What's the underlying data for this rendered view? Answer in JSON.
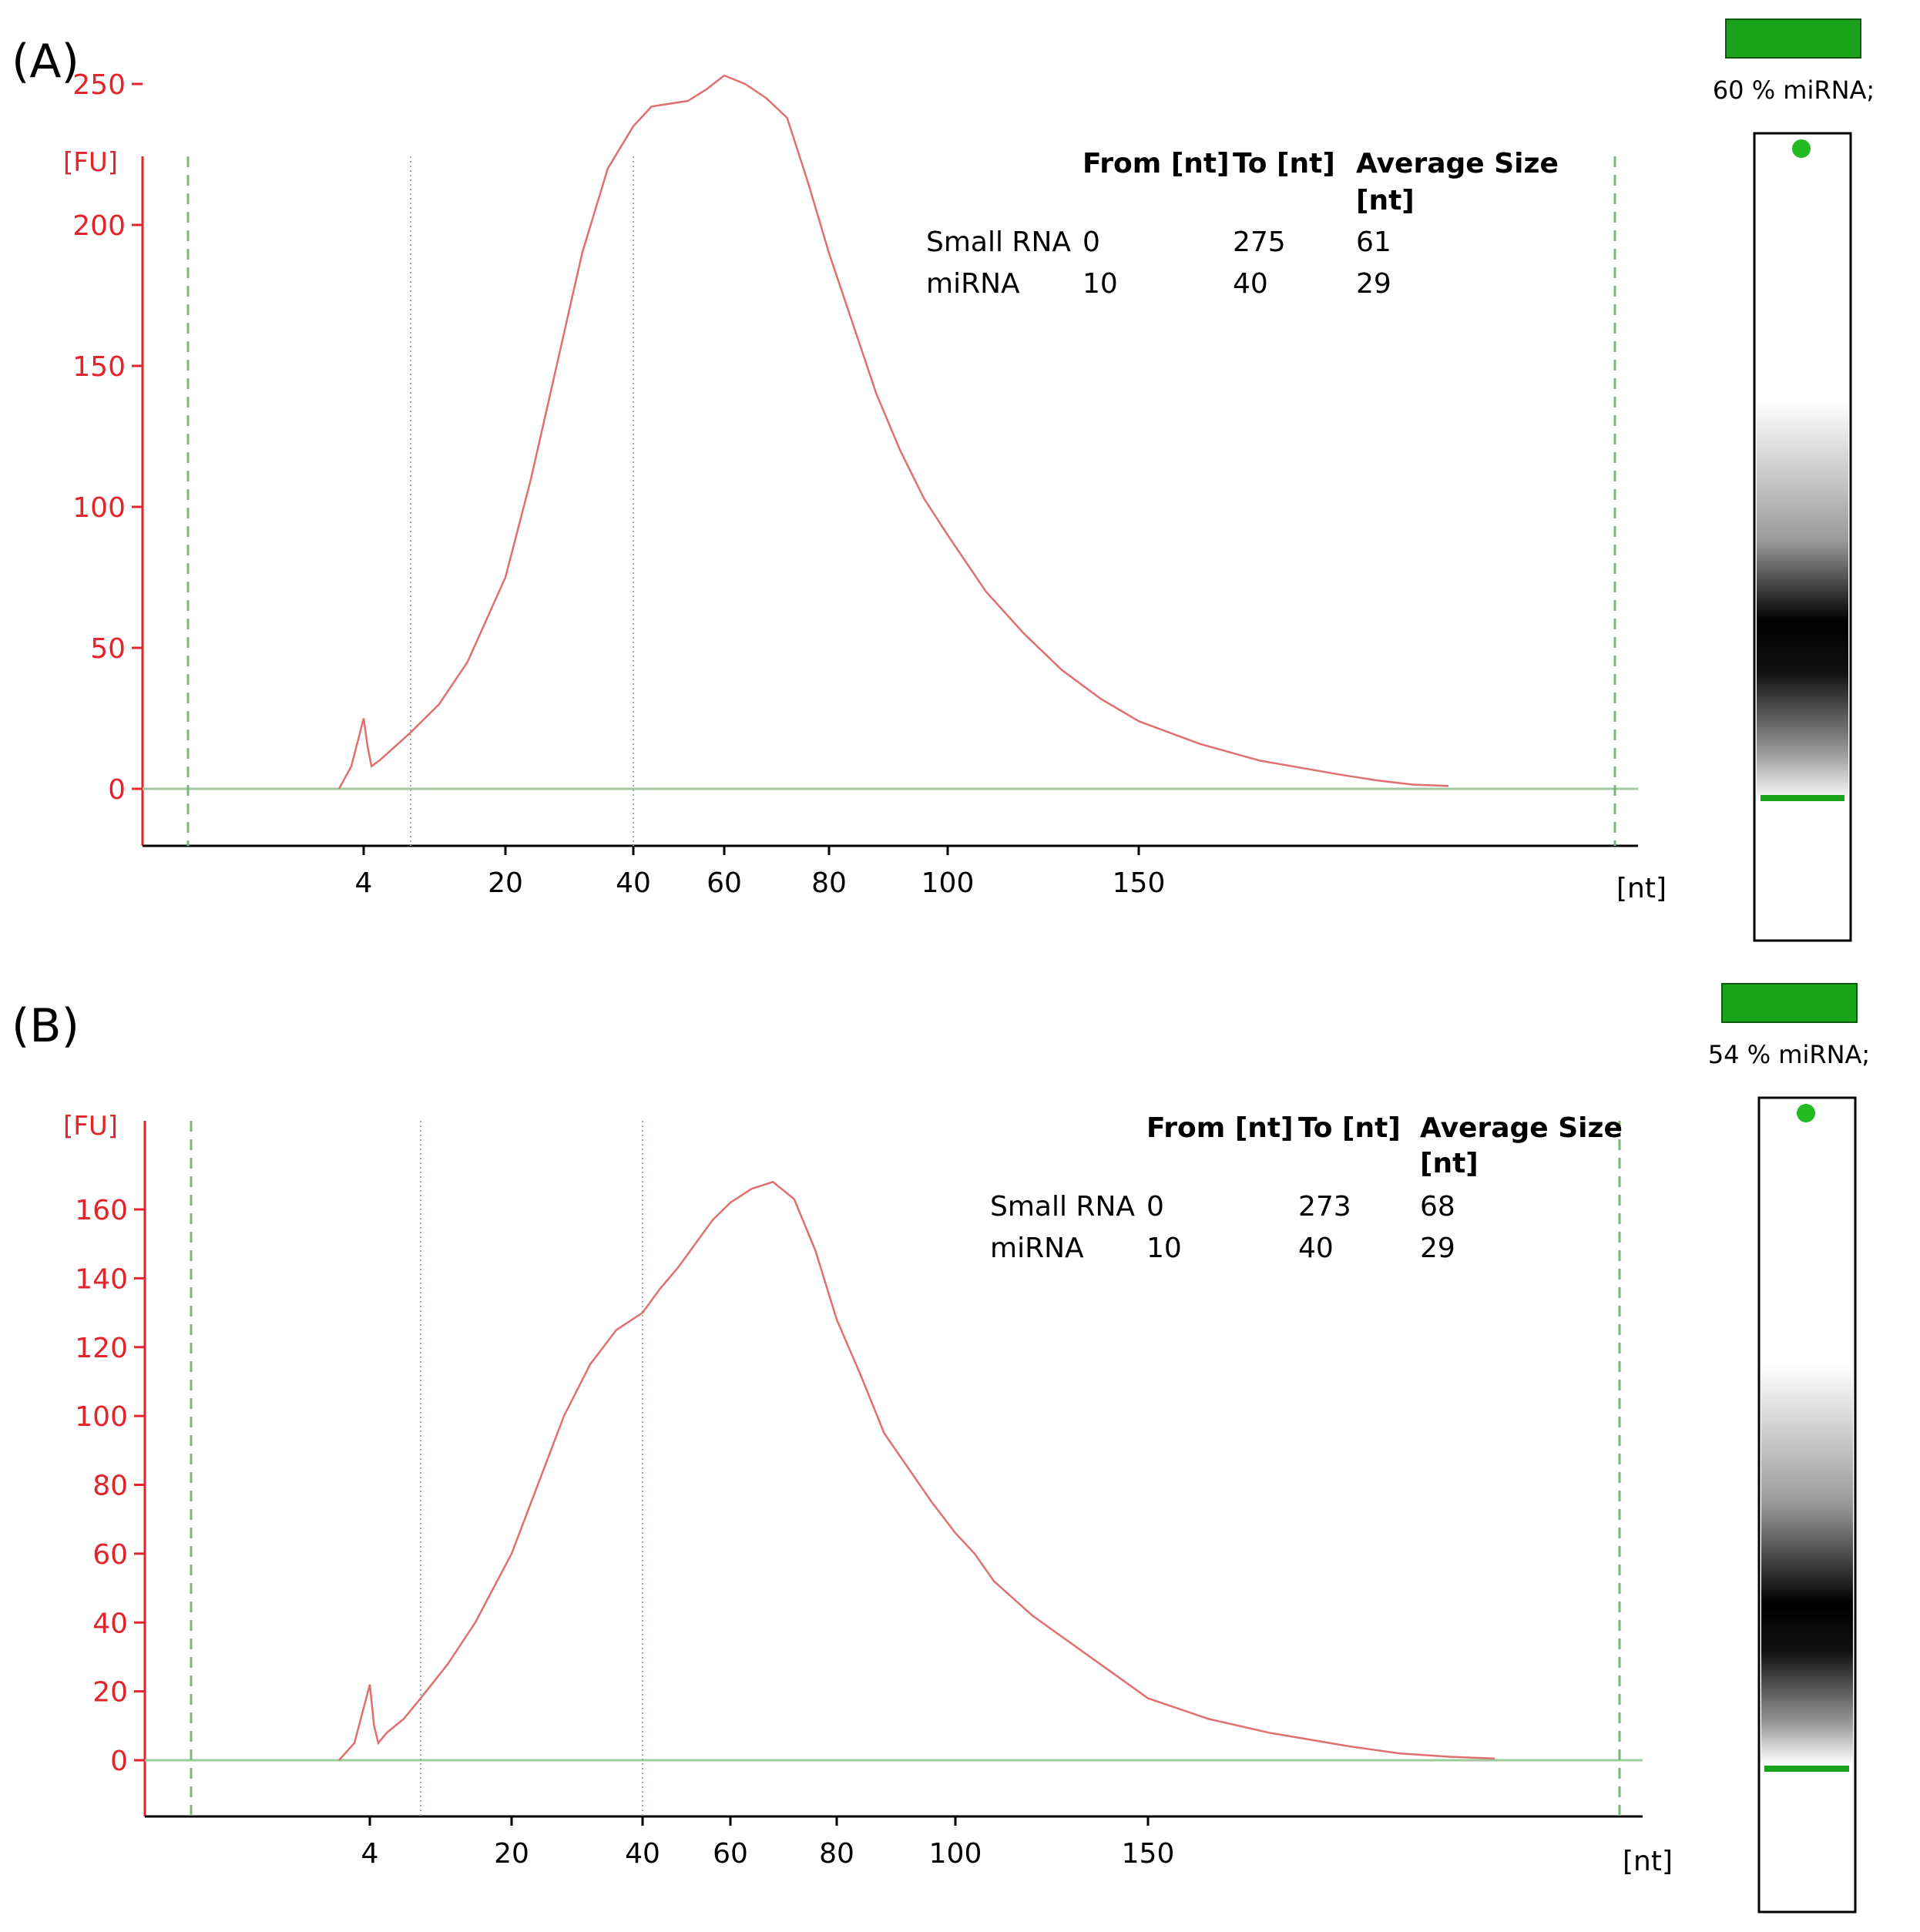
{
  "panels": [
    {
      "label": "(A)",
      "percent_label": "60 % miRNA;",
      "table": {
        "headers": [
          "From [nt]",
          "To [nt]",
          "Average Size",
          "[nt]"
        ],
        "rows": [
          {
            "name": "Small RNA",
            "from": "0",
            "to": "275",
            "avg": "61"
          },
          {
            "name": "miRNA",
            "from": "10",
            "to": "40",
            "avg": "29"
          }
        ]
      }
    },
    {
      "label": "(B)",
      "percent_label": "54 % miRNA;",
      "table": {
        "headers": [
          "From [nt]",
          "To [nt]",
          "Average Size",
          "[nt]"
        ],
        "rows": [
          {
            "name": "Small RNA",
            "from": "0",
            "to": "273",
            "avg": "68"
          },
          {
            "name": "miRNA",
            "from": "10",
            "to": "40",
            "avg": "29"
          }
        ]
      }
    }
  ],
  "colors": {
    "trace": "#e07070",
    "axis_y": "#e2242b",
    "baseline": "#9ccc9c",
    "marker": "#7ab87a",
    "gel_green": "#1aa31a"
  },
  "chart_data": [
    {
      "type": "line",
      "ylabel": "[FU]",
      "xlabel": "[nt]",
      "ylim": [
        -25,
        255
      ],
      "y_ticks": [
        0,
        50,
        100,
        150,
        200,
        250
      ],
      "x_ticks": [
        "4",
        "20",
        "40",
        "60",
        "80",
        "100",
        "150"
      ],
      "x_unit": "nt",
      "series": [
        {
          "x": [
            "3",
            "3.5",
            "4",
            "4.5",
            "5",
            "6",
            "8",
            "10",
            "13",
            "16",
            "20",
            "24",
            "28",
            "32",
            "36",
            "40",
            "44",
            "48",
            "52",
            "56",
            "60",
            "64",
            "68",
            "72",
            "76",
            "80",
            "84",
            "88",
            "92",
            "96",
            "100",
            "110",
            "120",
            "130",
            "140",
            "150",
            "165",
            "180",
            "200",
            "225",
            "250",
            "275"
          ],
          "y": [
            0,
            8,
            25,
            15,
            8,
            10,
            15,
            20,
            30,
            45,
            75,
            110,
            150,
            190,
            220,
            235,
            242,
            243,
            244,
            248,
            253,
            250,
            245,
            238,
            215,
            190,
            165,
            140,
            120,
            103,
            90,
            70,
            55,
            42,
            32,
            24,
            16,
            10,
            5,
            3,
            1.5,
            1
          ]
        }
      ]
    },
    {
      "type": "line",
      "ylabel": "[FU]",
      "xlabel": "[nt]",
      "ylim": [
        -15,
        180
      ],
      "y_ticks": [
        0,
        20,
        40,
        60,
        80,
        100,
        120,
        140,
        160
      ],
      "x_ticks": [
        "4",
        "20",
        "40",
        "60",
        "80",
        "100",
        "150"
      ],
      "x_unit": "nt",
      "series": [
        {
          "x": [
            "3",
            "3.5",
            "4",
            "4.5",
            "5",
            "6",
            "8",
            "10",
            "13",
            "16",
            "20",
            "24",
            "28",
            "32",
            "36",
            "40",
            "44",
            "48",
            "52",
            "56",
            "60",
            "64",
            "68",
            "72",
            "76",
            "80",
            "84",
            "88",
            "92",
            "96",
            "100",
            "105",
            "110",
            "120",
            "130",
            "140",
            "150",
            "165",
            "180",
            "200",
            "225",
            "250",
            "273"
          ],
          "y": [
            0,
            5,
            22,
            10,
            5,
            8,
            12,
            18,
            28,
            40,
            60,
            80,
            100,
            115,
            125,
            130,
            137,
            143,
            150,
            157,
            162,
            166,
            168,
            163,
            148,
            128,
            112,
            95,
            85,
            75,
            66,
            60,
            52,
            42,
            34,
            26,
            18,
            12,
            8,
            4,
            2,
            1,
            0.5
          ]
        }
      ]
    }
  ]
}
